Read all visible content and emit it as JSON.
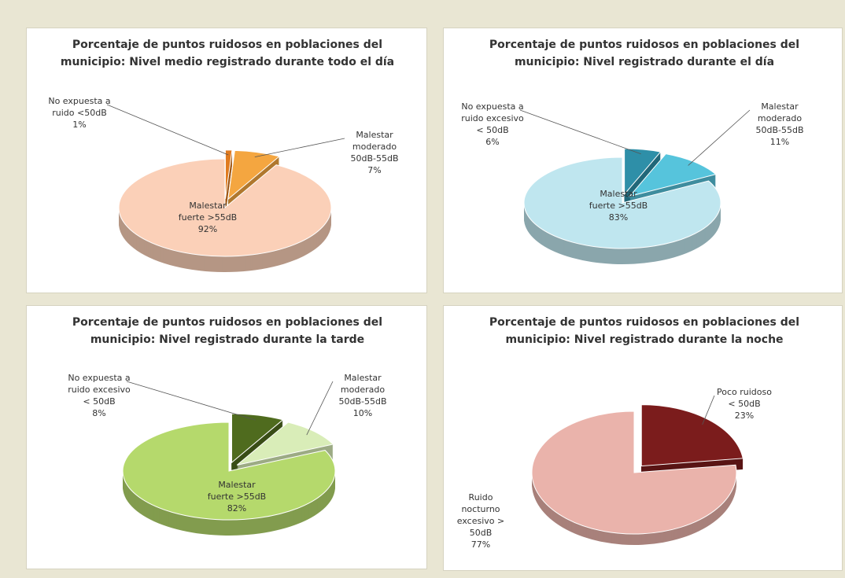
{
  "chart_data": [
    {
      "type": "pie",
      "title": "Porcentaje de puntos ruidosos en poblaciones del municipio: Nivel medio registrado durante todo el día",
      "categories": [
        "No expuesta a ruido <50dB",
        "Malestar moderado 50dB-55dB",
        "Malestar fuerte >55dB"
      ],
      "values": [
        1,
        7,
        92
      ],
      "value_labels": [
        "1%",
        "7%",
        "92%"
      ],
      "colors": [
        "#e07b20",
        "#f4a640",
        "#fbd0b8"
      ]
    },
    {
      "type": "pie",
      "title": "Porcentaje de puntos ruidosos en poblaciones del municipio: Nivel registrado durante el día",
      "categories": [
        "No expuesta a ruido excesivo < 50dB",
        "Malestar moderado 50dB-55dB",
        "Malestar fuerte >55dB"
      ],
      "values": [
        6,
        11,
        83
      ],
      "value_labels": [
        "6%",
        "11%",
        "83%"
      ],
      "colors": [
        "#2e8fa8",
        "#56c4dc",
        "#bfe6ef"
      ]
    },
    {
      "type": "pie",
      "title": "Porcentaje de puntos ruidosos en poblaciones del municipio: Nivel registrado durante la tarde",
      "categories": [
        "No expuesta a ruido excesivo < 50dB",
        "Malestar moderado 50dB-55dB",
        "Malestar fuerte >55dB"
      ],
      "values": [
        8,
        10,
        82
      ],
      "value_labels": [
        "8%",
        "10%",
        "82%"
      ],
      "colors": [
        "#4f6b1e",
        "#d9edb8",
        "#b5d96c"
      ]
    },
    {
      "type": "pie",
      "title": "Porcentaje de puntos ruidosos en poblaciones del municipio: Nivel registrado durante la noche",
      "categories": [
        "Poco ruidoso < 50dB",
        "Ruido nocturno excesivo > 50dB"
      ],
      "values": [
        23,
        77
      ],
      "value_labels": [
        "23%",
        "77%"
      ],
      "colors": [
        "#7b1c1c",
        "#eab3ab"
      ]
    }
  ]
}
